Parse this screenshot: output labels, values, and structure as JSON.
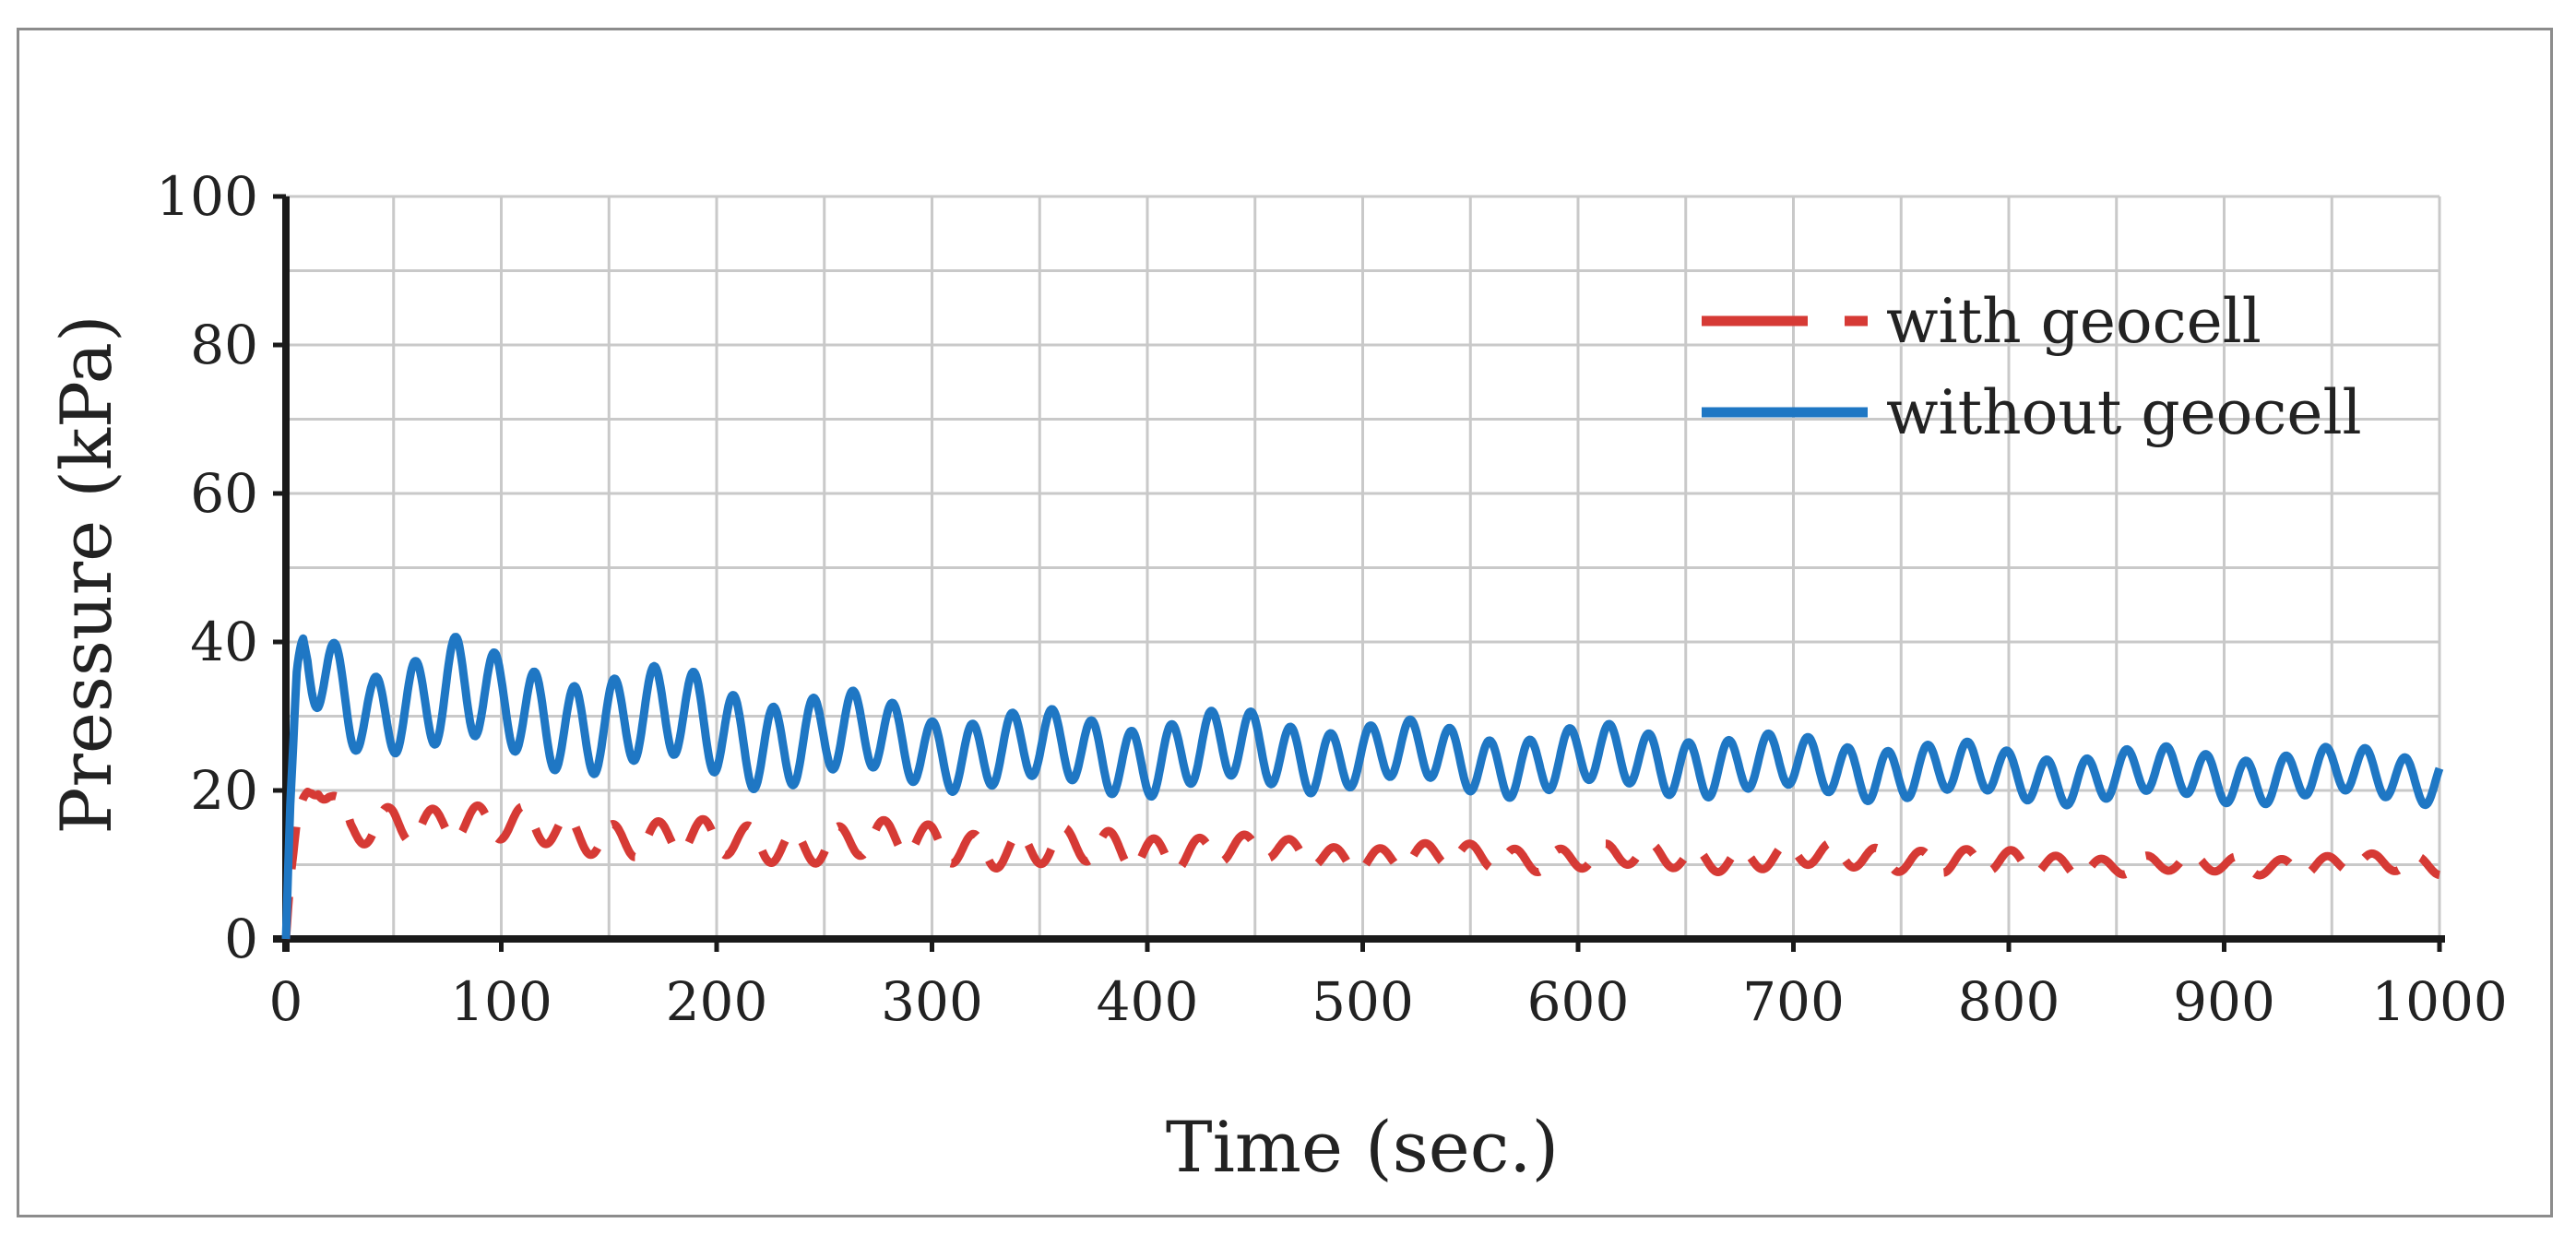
{
  "chart_data": {
    "type": "line",
    "title": "",
    "xlabel": "Time (sec.)",
    "ylabel": "Pressure (kPa)",
    "xlim": [
      0,
      1000
    ],
    "ylim": [
      0,
      100
    ],
    "x_ticks": [
      "0",
      "100",
      "200",
      "300",
      "400",
      "500",
      "600",
      "700",
      "800",
      "900",
      "1000"
    ],
    "y_ticks": [
      "0",
      "20",
      "40",
      "60",
      "80",
      "100"
    ],
    "grid": true,
    "legend_position": "top-right",
    "series": [
      {
        "name": "with geocell",
        "color": "#d63a35",
        "style": "dashed",
        "x": [
          0,
          2,
          5,
          8,
          10,
          12,
          15,
          20,
          25,
          30,
          40,
          50,
          60,
          80,
          100,
          150,
          200,
          250,
          300,
          350,
          400,
          450,
          500,
          550,
          600,
          650,
          700,
          750,
          800,
          850,
          900,
          950,
          1000
        ],
        "y": [
          0,
          8,
          14,
          17,
          19,
          20,
          21,
          19,
          16,
          14,
          15,
          16,
          16,
          16,
          15,
          14,
          13,
          13,
          13,
          12,
          12,
          12,
          11,
          11,
          11,
          11,
          11,
          11,
          10,
          10,
          10,
          10,
          10
        ],
        "amplitude": [
          0,
          0,
          2,
          3,
          3,
          3,
          3,
          3,
          3,
          3,
          3,
          3,
          3,
          3,
          3,
          3,
          3,
          3,
          3,
          3,
          3,
          2,
          2,
          2,
          2,
          2,
          2,
          2,
          2,
          1.5,
          1.5,
          1.5,
          1.5
        ]
      },
      {
        "name": "without geocell",
        "color": "#1f77c4",
        "style": "solid",
        "x": [
          0,
          2,
          5,
          8,
          10,
          15,
          20,
          30,
          40,
          50,
          60,
          80,
          100,
          150,
          200,
          250,
          300,
          350,
          400,
          450,
          500,
          550,
          600,
          650,
          700,
          750,
          800,
          850,
          900,
          950,
          1000
        ],
        "y": [
          0,
          18,
          30,
          36,
          37,
          35,
          34,
          31,
          31,
          33,
          33,
          33,
          30,
          30,
          28,
          27,
          26,
          25,
          25,
          25,
          25,
          24,
          24,
          24,
          23,
          23,
          22,
          22,
          22,
          22,
          22
        ],
        "amplitude": [
          0,
          0,
          6,
          8,
          8,
          8,
          8,
          7,
          7,
          8,
          8,
          9,
          8,
          8,
          8,
          7,
          6,
          6,
          6,
          6,
          5,
          5,
          5,
          5,
          4.5,
          4.5,
          4,
          4,
          4,
          4,
          4
        ]
      }
    ]
  }
}
